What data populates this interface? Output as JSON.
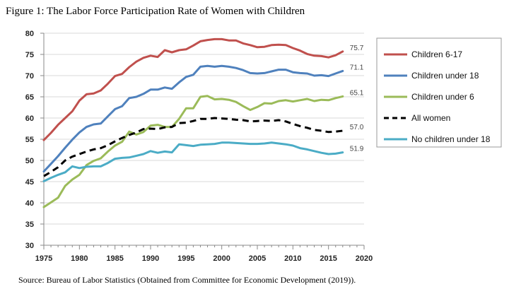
{
  "figure": {
    "title": "Figure 1: The Labor Force Participation Rate of Women with Children",
    "source": "Source: Bureau of Labor Statistics (Obtained from Committee for Economic Development (2019))."
  },
  "chart_data": {
    "type": "line",
    "title": "",
    "xlabel": "",
    "ylabel": "",
    "xlim": [
      1975,
      2020
    ],
    "ylim": [
      30,
      80
    ],
    "x_ticks": [
      1975,
      1980,
      1985,
      1990,
      1995,
      2000,
      2005,
      2010,
      2015,
      2020
    ],
    "y_ticks": [
      30,
      35,
      40,
      45,
      50,
      55,
      60,
      65,
      70,
      75,
      80
    ],
    "grid": "horizontal",
    "legend_position": "right",
    "x": [
      1975,
      1976,
      1977,
      1978,
      1979,
      1980,
      1981,
      1982,
      1983,
      1984,
      1985,
      1986,
      1987,
      1988,
      1989,
      1990,
      1991,
      1992,
      1993,
      1994,
      1995,
      1996,
      1997,
      1998,
      1999,
      2000,
      2001,
      2002,
      2003,
      2004,
      2005,
      2006,
      2007,
      2008,
      2009,
      2010,
      2011,
      2012,
      2013,
      2014,
      2015,
      2016,
      2017
    ],
    "series": [
      {
        "name": "Children 6-17",
        "color": "#c0504d",
        "line_style": "solid",
        "end_label": "75.7",
        "values": [
          54.8,
          56.5,
          58.4,
          60.0,
          61.6,
          64.1,
          65.6,
          65.8,
          66.5,
          68.1,
          69.9,
          70.4,
          72.0,
          73.3,
          74.2,
          74.7,
          74.4,
          76.0,
          75.5,
          76.0,
          76.2,
          77.1,
          78.1,
          78.4,
          78.6,
          78.6,
          78.3,
          78.3,
          77.6,
          77.2,
          76.7,
          76.8,
          77.2,
          77.3,
          77.2,
          76.5,
          75.9,
          75.1,
          74.7,
          74.6,
          74.3,
          74.8,
          75.7
        ]
      },
      {
        "name": "Children under 18",
        "color": "#4f81bd",
        "line_style": "solid",
        "end_label": "71.1",
        "values": [
          47.4,
          49.2,
          51.0,
          53.0,
          54.9,
          56.6,
          57.9,
          58.5,
          58.7,
          60.4,
          62.1,
          62.8,
          64.7,
          65.0,
          65.7,
          66.7,
          66.7,
          67.2,
          66.9,
          68.4,
          69.7,
          70.2,
          72.1,
          72.3,
          72.1,
          72.3,
          72.1,
          71.8,
          71.3,
          70.6,
          70.5,
          70.6,
          71.0,
          71.4,
          71.4,
          70.8,
          70.6,
          70.5,
          70.0,
          70.1,
          69.9,
          70.5,
          71.1
        ]
      },
      {
        "name": "Children under 6",
        "color": "#9bbb59",
        "line_style": "solid",
        "end_label": "65.1",
        "values": [
          39.0,
          40.1,
          41.2,
          44.0,
          45.5,
          46.6,
          48.9,
          49.9,
          50.5,
          52.1,
          53.5,
          54.4,
          56.8,
          56.1,
          56.7,
          58.2,
          58.4,
          57.9,
          57.9,
          59.8,
          62.3,
          62.3,
          65.0,
          65.2,
          64.4,
          64.5,
          64.3,
          63.8,
          62.8,
          61.9,
          62.6,
          63.5,
          63.4,
          64.0,
          64.2,
          63.9,
          64.2,
          64.5,
          64.0,
          64.3,
          64.2,
          64.7,
          65.1
        ]
      },
      {
        "name": "All women",
        "color": "#000000",
        "line_style": "dashed",
        "end_label": "57.0",
        "values": [
          46.3,
          47.3,
          48.4,
          50.0,
          50.9,
          51.5,
          52.1,
          52.6,
          52.9,
          53.6,
          54.5,
          55.3,
          56.0,
          56.6,
          57.4,
          57.5,
          57.4,
          57.8,
          57.9,
          58.8,
          58.9,
          59.3,
          59.8,
          59.8,
          60.0,
          59.9,
          59.8,
          59.6,
          59.5,
          59.2,
          59.3,
          59.4,
          59.3,
          59.5,
          59.2,
          58.6,
          58.1,
          57.7,
          57.2,
          57.0,
          56.7,
          56.8,
          57.0
        ]
      },
      {
        "name": "No children under 18",
        "color": "#4bacc6",
        "line_style": "solid",
        "end_label": "51.9",
        "values": [
          45.1,
          45.9,
          46.6,
          47.2,
          48.6,
          48.2,
          48.5,
          48.6,
          48.6,
          49.4,
          50.4,
          50.6,
          50.7,
          51.1,
          51.5,
          52.2,
          51.8,
          52.1,
          51.9,
          53.8,
          53.6,
          53.4,
          53.7,
          53.8,
          53.9,
          54.2,
          54.2,
          54.1,
          54.0,
          53.9,
          53.9,
          54.0,
          54.2,
          54.0,
          53.8,
          53.5,
          52.9,
          52.6,
          52.2,
          51.8,
          51.5,
          51.6,
          51.9
        ]
      }
    ]
  }
}
